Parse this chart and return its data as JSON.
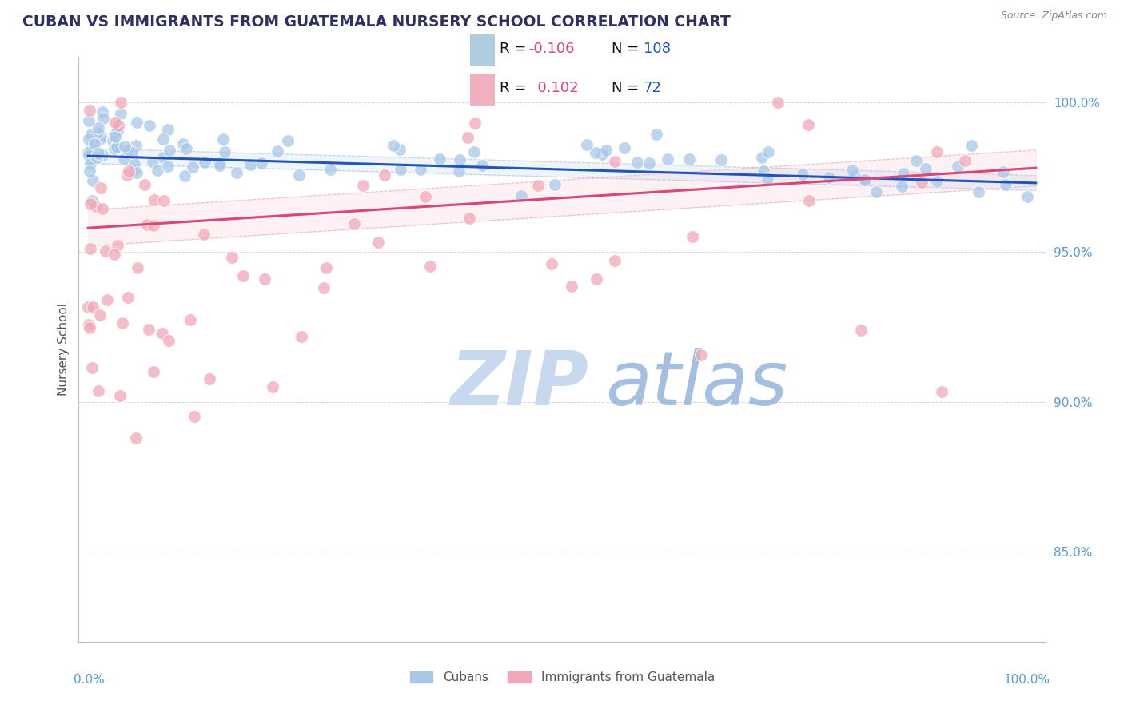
{
  "title": "CUBAN VS IMMIGRANTS FROM GUATEMALA NURSERY SCHOOL CORRELATION CHART",
  "source": "Source: ZipAtlas.com",
  "ylabel": "Nursery School",
  "r_cubans": -0.106,
  "n_cubans": 108,
  "r_guatemala": 0.102,
  "n_guatemala": 72,
  "blue_scatter_color": "#a8c8e8",
  "pink_scatter_color": "#f0a8b8",
  "blue_line_color": "#2255bb",
  "pink_line_color": "#dd4477",
  "blue_ci_color": "#c8ddf0",
  "pink_ci_color": "#f8c8d4",
  "background_color": "#ffffff",
  "title_color": "#303060",
  "axis_label_color": "#555555",
  "tick_label_color": "#5599dd",
  "watermark_zip_color": "#c8d8ee",
  "watermark_atlas_color": "#9ab8dd",
  "grid_color": "#cccccc",
  "legend_text_color": "#222222",
  "legend_r_value_color": "#dd4477",
  "legend_n_color": "#2255bb",
  "ymin": 82.0,
  "ymax": 101.5,
  "xmin": 0.0,
  "xmax": 100.0,
  "blue_trend_y0": 98.2,
  "blue_trend_y1": 97.3,
  "pink_trend_y0": 95.8,
  "pink_trend_y1": 97.8
}
